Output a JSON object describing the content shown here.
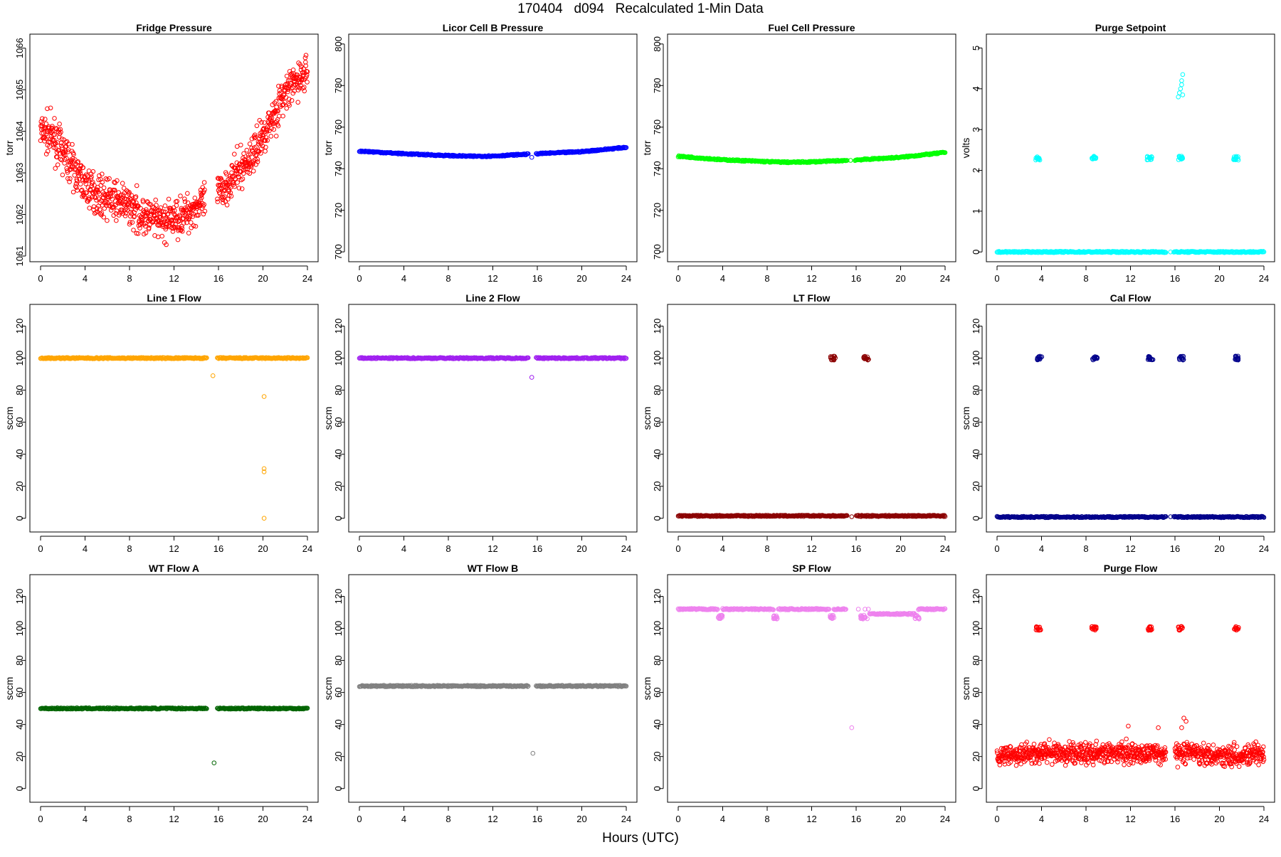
{
  "figure": {
    "title": "170404   d094   Recalculated 1-Min Data",
    "xlabel": "Hours (UTC)"
  },
  "chart_data": [
    {
      "type": "scatter",
      "title": "Fridge Pressure",
      "ylabel": "torr",
      "color": "#ff0000",
      "xlim": [
        0,
        24
      ],
      "xticks": [
        0,
        4,
        8,
        12,
        16,
        20,
        24
      ],
      "ylim": [
        1061,
        1066.2
      ],
      "yticks": [
        1061,
        1062,
        1063,
        1064,
        1065,
        1066
      ],
      "y_tick_labels": [
        "1061",
        "1062",
        "1063",
        "1064",
        "1065",
        "1066"
      ],
      "series": [
        {
          "style": "noisy-curve",
          "x": [
            0,
            1,
            2,
            3,
            4,
            5,
            6,
            7,
            8,
            9,
            10,
            11,
            12,
            13,
            14,
            15,
            16,
            17,
            18,
            19,
            20,
            21,
            22,
            23,
            24
          ],
          "y": [
            1064.0,
            1063.9,
            1063.5,
            1063.1,
            1062.7,
            1062.5,
            1062.4,
            1062.3,
            1062.2,
            1062.0,
            1061.9,
            1061.8,
            1061.9,
            1062.0,
            1062.2,
            1062.3,
            1062.5,
            1062.8,
            1063.1,
            1063.4,
            1063.9,
            1064.4,
            1064.9,
            1065.2,
            1065.4
          ],
          "noise": 0.35,
          "gaps": [
            [
              14.8,
              15.9
            ]
          ]
        }
      ]
    },
    {
      "type": "scatter",
      "title": "Licor Cell B Pressure",
      "ylabel": "torr",
      "color": "#0000ff",
      "xlim": [
        0,
        24
      ],
      "xticks": [
        0,
        4,
        8,
        12,
        16,
        20,
        24
      ],
      "ylim": [
        698,
        802
      ],
      "yticks": [
        700,
        720,
        740,
        760,
        780,
        800
      ],
      "y_tick_labels": [
        "700",
        "720",
        "740",
        "760",
        "780",
        "800"
      ],
      "series": [
        {
          "style": "band",
          "x": [
            0,
            4,
            8,
            10,
            12,
            15.2,
            15.9,
            20,
            24
          ],
          "y": [
            748.5,
            747.2,
            746.3,
            746.0,
            746.1,
            747.0,
            747.2,
            748.2,
            750.3
          ],
          "gaps": [
            [
              15.2,
              15.9
            ]
          ]
        }
      ],
      "outliers": [
        {
          "x": 15.5,
          "y": 745.5
        }
      ]
    },
    {
      "type": "scatter",
      "title": "Fuel Cell Pressure",
      "ylabel": "torr",
      "color": "#00ff00",
      "xlim": [
        0,
        24
      ],
      "xticks": [
        0,
        4,
        8,
        12,
        16,
        20,
        24
      ],
      "ylim": [
        698,
        802
      ],
      "yticks": [
        700,
        720,
        740,
        760,
        780,
        800
      ],
      "y_tick_labels": [
        "700",
        "720",
        "740",
        "760",
        "780",
        "800"
      ],
      "series": [
        {
          "style": "band",
          "x": [
            0,
            4,
            8,
            10,
            12,
            15.2,
            15.9,
            20,
            24
          ],
          "y": [
            746.0,
            744.3,
            743.4,
            743.1,
            743.3,
            744.0,
            744.2,
            745.5,
            747.8
          ],
          "gaps": [
            [
              15.2,
              15.9
            ]
          ]
        }
      ],
      "outliers": [
        {
          "x": 15.5,
          "y": 744.0
        }
      ]
    },
    {
      "type": "scatter",
      "title": "Purge Setpoint",
      "ylabel": "volts",
      "color": "#00ffff",
      "xlim": [
        0,
        24
      ],
      "xticks": [
        0,
        4,
        8,
        12,
        16,
        20,
        24
      ],
      "ylim": [
        -0.1,
        5.2
      ],
      "yticks": [
        0,
        1,
        2,
        3,
        4,
        5
      ],
      "y_tick_labels": [
        "0",
        "1",
        "2",
        "3",
        "4",
        "5"
      ],
      "series": [
        {
          "style": "band",
          "x": [
            0,
            24
          ],
          "y": [
            0,
            0
          ],
          "gaps": [
            [
              15.2,
              15.9
            ]
          ]
        }
      ],
      "clusters": [
        {
          "x": 3.7,
          "y": 2.3
        },
        {
          "x": 8.7,
          "y": 2.3
        },
        {
          "x": 13.7,
          "y": 2.3
        },
        {
          "x": 16.5,
          "y": 2.3
        },
        {
          "x": 21.5,
          "y": 2.3
        }
      ],
      "outliers": [
        {
          "x": 16.3,
          "y": 3.8
        },
        {
          "x": 16.4,
          "y": 3.9
        },
        {
          "x": 16.5,
          "y": 4.0
        },
        {
          "x": 16.6,
          "y": 4.1
        },
        {
          "x": 16.6,
          "y": 4.2
        },
        {
          "x": 16.7,
          "y": 4.35
        },
        {
          "x": 16.7,
          "y": 3.85
        },
        {
          "x": 15.6,
          "y": 0
        },
        {
          "x": 16.2,
          "y": 0
        }
      ]
    },
    {
      "type": "scatter",
      "title": "Line 1 Flow",
      "ylabel": "sccm",
      "color": "#ffa500",
      "xlim": [
        0,
        24
      ],
      "xticks": [
        0,
        4,
        8,
        12,
        16,
        20,
        24
      ],
      "ylim": [
        -5,
        130
      ],
      "yticks": [
        0,
        20,
        40,
        60,
        80,
        100,
        120
      ],
      "y_tick_labels": [
        "0",
        "20",
        "40",
        "60",
        "80",
        "100",
        "120"
      ],
      "series": [
        {
          "style": "band",
          "x": [
            0,
            24
          ],
          "y": [
            100,
            100
          ],
          "gaps": [
            [
              15.0,
              15.9
            ]
          ]
        }
      ],
      "outliers": [
        {
          "x": 15.5,
          "y": 89
        },
        {
          "x": 20.1,
          "y": 76
        },
        {
          "x": 20.1,
          "y": 31
        },
        {
          "x": 20.1,
          "y": 29
        },
        {
          "x": 20.1,
          "y": 0
        }
      ]
    },
    {
      "type": "scatter",
      "title": "Line 2 Flow",
      "ylabel": "sccm",
      "color": "#a020f0",
      "xlim": [
        0,
        24
      ],
      "xticks": [
        0,
        4,
        8,
        12,
        16,
        20,
        24
      ],
      "ylim": [
        -5,
        130
      ],
      "yticks": [
        0,
        20,
        40,
        60,
        80,
        100,
        120
      ],
      "y_tick_labels": [
        "0",
        "20",
        "40",
        "60",
        "80",
        "100",
        "120"
      ],
      "series": [
        {
          "style": "band",
          "x": [
            0,
            24
          ],
          "y": [
            100,
            100
          ],
          "gaps": [
            [
              15.2,
              15.9
            ]
          ]
        }
      ],
      "outliers": [
        {
          "x": 15.5,
          "y": 88
        }
      ]
    },
    {
      "type": "scatter",
      "title": "LT Flow",
      "ylabel": "sccm",
      "color": "#8b0000",
      "xlim": [
        0,
        24
      ],
      "xticks": [
        0,
        4,
        8,
        12,
        16,
        20,
        24
      ],
      "ylim": [
        -5,
        130
      ],
      "yticks": [
        0,
        20,
        40,
        60,
        80,
        100,
        120
      ],
      "y_tick_labels": [
        "0",
        "20",
        "40",
        "60",
        "80",
        "100",
        "120"
      ],
      "series": [
        {
          "style": "band",
          "x": [
            0,
            24
          ],
          "y": [
            1.5,
            1.5
          ],
          "gaps": [
            [
              15.2,
              16.0
            ]
          ]
        }
      ],
      "clusters": [
        {
          "x": 13.9,
          "y": 100
        },
        {
          "x": 16.9,
          "y": 100
        }
      ],
      "outliers": [
        {
          "x": 15.6,
          "y": 1
        }
      ]
    },
    {
      "type": "scatter",
      "title": "Cal Flow",
      "ylabel": "sccm",
      "color": "#00008b",
      "xlim": [
        0,
        24
      ],
      "xticks": [
        0,
        4,
        8,
        12,
        16,
        20,
        24
      ],
      "ylim": [
        -5,
        130
      ],
      "yticks": [
        0,
        20,
        40,
        60,
        80,
        100,
        120
      ],
      "y_tick_labels": [
        "0",
        "20",
        "40",
        "60",
        "80",
        "100",
        "120"
      ],
      "series": [
        {
          "style": "band",
          "x": [
            0,
            24
          ],
          "y": [
            0.8,
            0.8
          ],
          "gaps": [
            [
              15.2,
              15.9
            ]
          ]
        }
      ],
      "clusters": [
        {
          "x": 3.8,
          "y": 100
        },
        {
          "x": 8.8,
          "y": 100
        },
        {
          "x": 13.8,
          "y": 100
        },
        {
          "x": 16.6,
          "y": 100
        },
        {
          "x": 21.6,
          "y": 100
        }
      ],
      "outliers": [
        {
          "x": 15.6,
          "y": 1
        },
        {
          "x": 16.1,
          "y": 1
        }
      ]
    },
    {
      "type": "scatter",
      "title": "WT Flow A",
      "ylabel": "sccm",
      "color": "#006400",
      "xlim": [
        0,
        24
      ],
      "xticks": [
        0,
        4,
        8,
        12,
        16,
        20,
        24
      ],
      "ylim": [
        -5,
        130
      ],
      "yticks": [
        0,
        20,
        40,
        60,
        80,
        100,
        120
      ],
      "y_tick_labels": [
        "0",
        "20",
        "40",
        "60",
        "80",
        "100",
        "120"
      ],
      "series": [
        {
          "style": "band",
          "x": [
            0,
            24
          ],
          "y": [
            50,
            50
          ],
          "gaps": [
            [
              15.0,
              15.9
            ]
          ]
        }
      ],
      "outliers": [
        {
          "x": 15.6,
          "y": 16
        }
      ]
    },
    {
      "type": "scatter",
      "title": "WT Flow B",
      "ylabel": "sccm",
      "color": "#808080",
      "xlim": [
        0,
        24
      ],
      "xticks": [
        0,
        4,
        8,
        12,
        16,
        20,
        24
      ],
      "ylim": [
        -5,
        130
      ],
      "yticks": [
        0,
        20,
        40,
        60,
        80,
        100,
        120
      ],
      "y_tick_labels": [
        "0",
        "20",
        "40",
        "60",
        "80",
        "100",
        "120"
      ],
      "series": [
        {
          "style": "band",
          "x": [
            0,
            24
          ],
          "y": [
            64,
            64
          ],
          "gaps": [
            [
              15.2,
              15.9
            ]
          ]
        }
      ],
      "outliers": [
        {
          "x": 15.6,
          "y": 22
        }
      ]
    },
    {
      "type": "scatter",
      "title": "SP Flow",
      "ylabel": "sccm",
      "color": "#ee82ee",
      "xlim": [
        0,
        24
      ],
      "xticks": [
        0,
        4,
        8,
        12,
        16,
        20,
        24
      ],
      "ylim": [
        -5,
        130
      ],
      "yticks": [
        0,
        20,
        40,
        60,
        80,
        100,
        120
      ],
      "y_tick_labels": [
        "0",
        "20",
        "40",
        "60",
        "80",
        "100",
        "120"
      ],
      "series": [
        {
          "style": "band",
          "x": [
            0,
            3.6
          ],
          "y": [
            112,
            112
          ]
        },
        {
          "style": "band",
          "x": [
            4.0,
            8.6
          ],
          "y": [
            112,
            112
          ]
        },
        {
          "style": "band",
          "x": [
            9.0,
            13.6
          ],
          "y": [
            112,
            112
          ]
        },
        {
          "style": "band",
          "x": [
            14.0,
            15.1
          ],
          "y": [
            112,
            112
          ]
        },
        {
          "style": "band",
          "x": [
            17.2,
            21.3
          ],
          "y": [
            109,
            109
          ]
        },
        {
          "style": "band",
          "x": [
            21.6,
            24
          ],
          "y": [
            112,
            112
          ]
        }
      ],
      "clusters": [
        {
          "x": 3.8,
          "y": 107
        },
        {
          "x": 8.8,
          "y": 107
        },
        {
          "x": 13.8,
          "y": 107
        },
        {
          "x": 16.6,
          "y": 107
        },
        {
          "x": 21.5,
          "y": 107
        }
      ],
      "outliers": [
        {
          "x": 15.6,
          "y": 38
        },
        {
          "x": 16.2,
          "y": 112
        },
        {
          "x": 16.8,
          "y": 112
        },
        {
          "x": 17.0,
          "y": 106
        },
        {
          "x": 17.1,
          "y": 112
        }
      ]
    },
    {
      "type": "scatter",
      "title": "Purge Flow",
      "ylabel": "sccm",
      "color": "#ff0000",
      "xlim": [
        0,
        24
      ],
      "xticks": [
        0,
        4,
        8,
        12,
        16,
        20,
        24
      ],
      "ylim": [
        -5,
        130
      ],
      "yticks": [
        0,
        20,
        40,
        60,
        80,
        100,
        120
      ],
      "y_tick_labels": [
        "0",
        "20",
        "40",
        "60",
        "80",
        "100",
        "120"
      ],
      "series": [
        {
          "style": "noisy-curve",
          "x": [
            0,
            4,
            8,
            12,
            15,
            16,
            17,
            20,
            24
          ],
          "y": [
            21,
            22,
            22,
            22,
            22,
            22,
            23,
            21,
            21
          ],
          "noise": 5,
          "gaps": [
            [
              15.2,
              16.0
            ]
          ]
        }
      ],
      "clusters": [
        {
          "x": 3.7,
          "y": 100
        },
        {
          "x": 8.7,
          "y": 100
        },
        {
          "x": 13.7,
          "y": 100
        },
        {
          "x": 16.5,
          "y": 100
        },
        {
          "x": 21.5,
          "y": 100
        }
      ],
      "outliers": [
        {
          "x": 16.8,
          "y": 44
        },
        {
          "x": 17.0,
          "y": 42
        },
        {
          "x": 16.6,
          "y": 38
        },
        {
          "x": 11.8,
          "y": 39
        },
        {
          "x": 14.5,
          "y": 38
        }
      ]
    }
  ]
}
